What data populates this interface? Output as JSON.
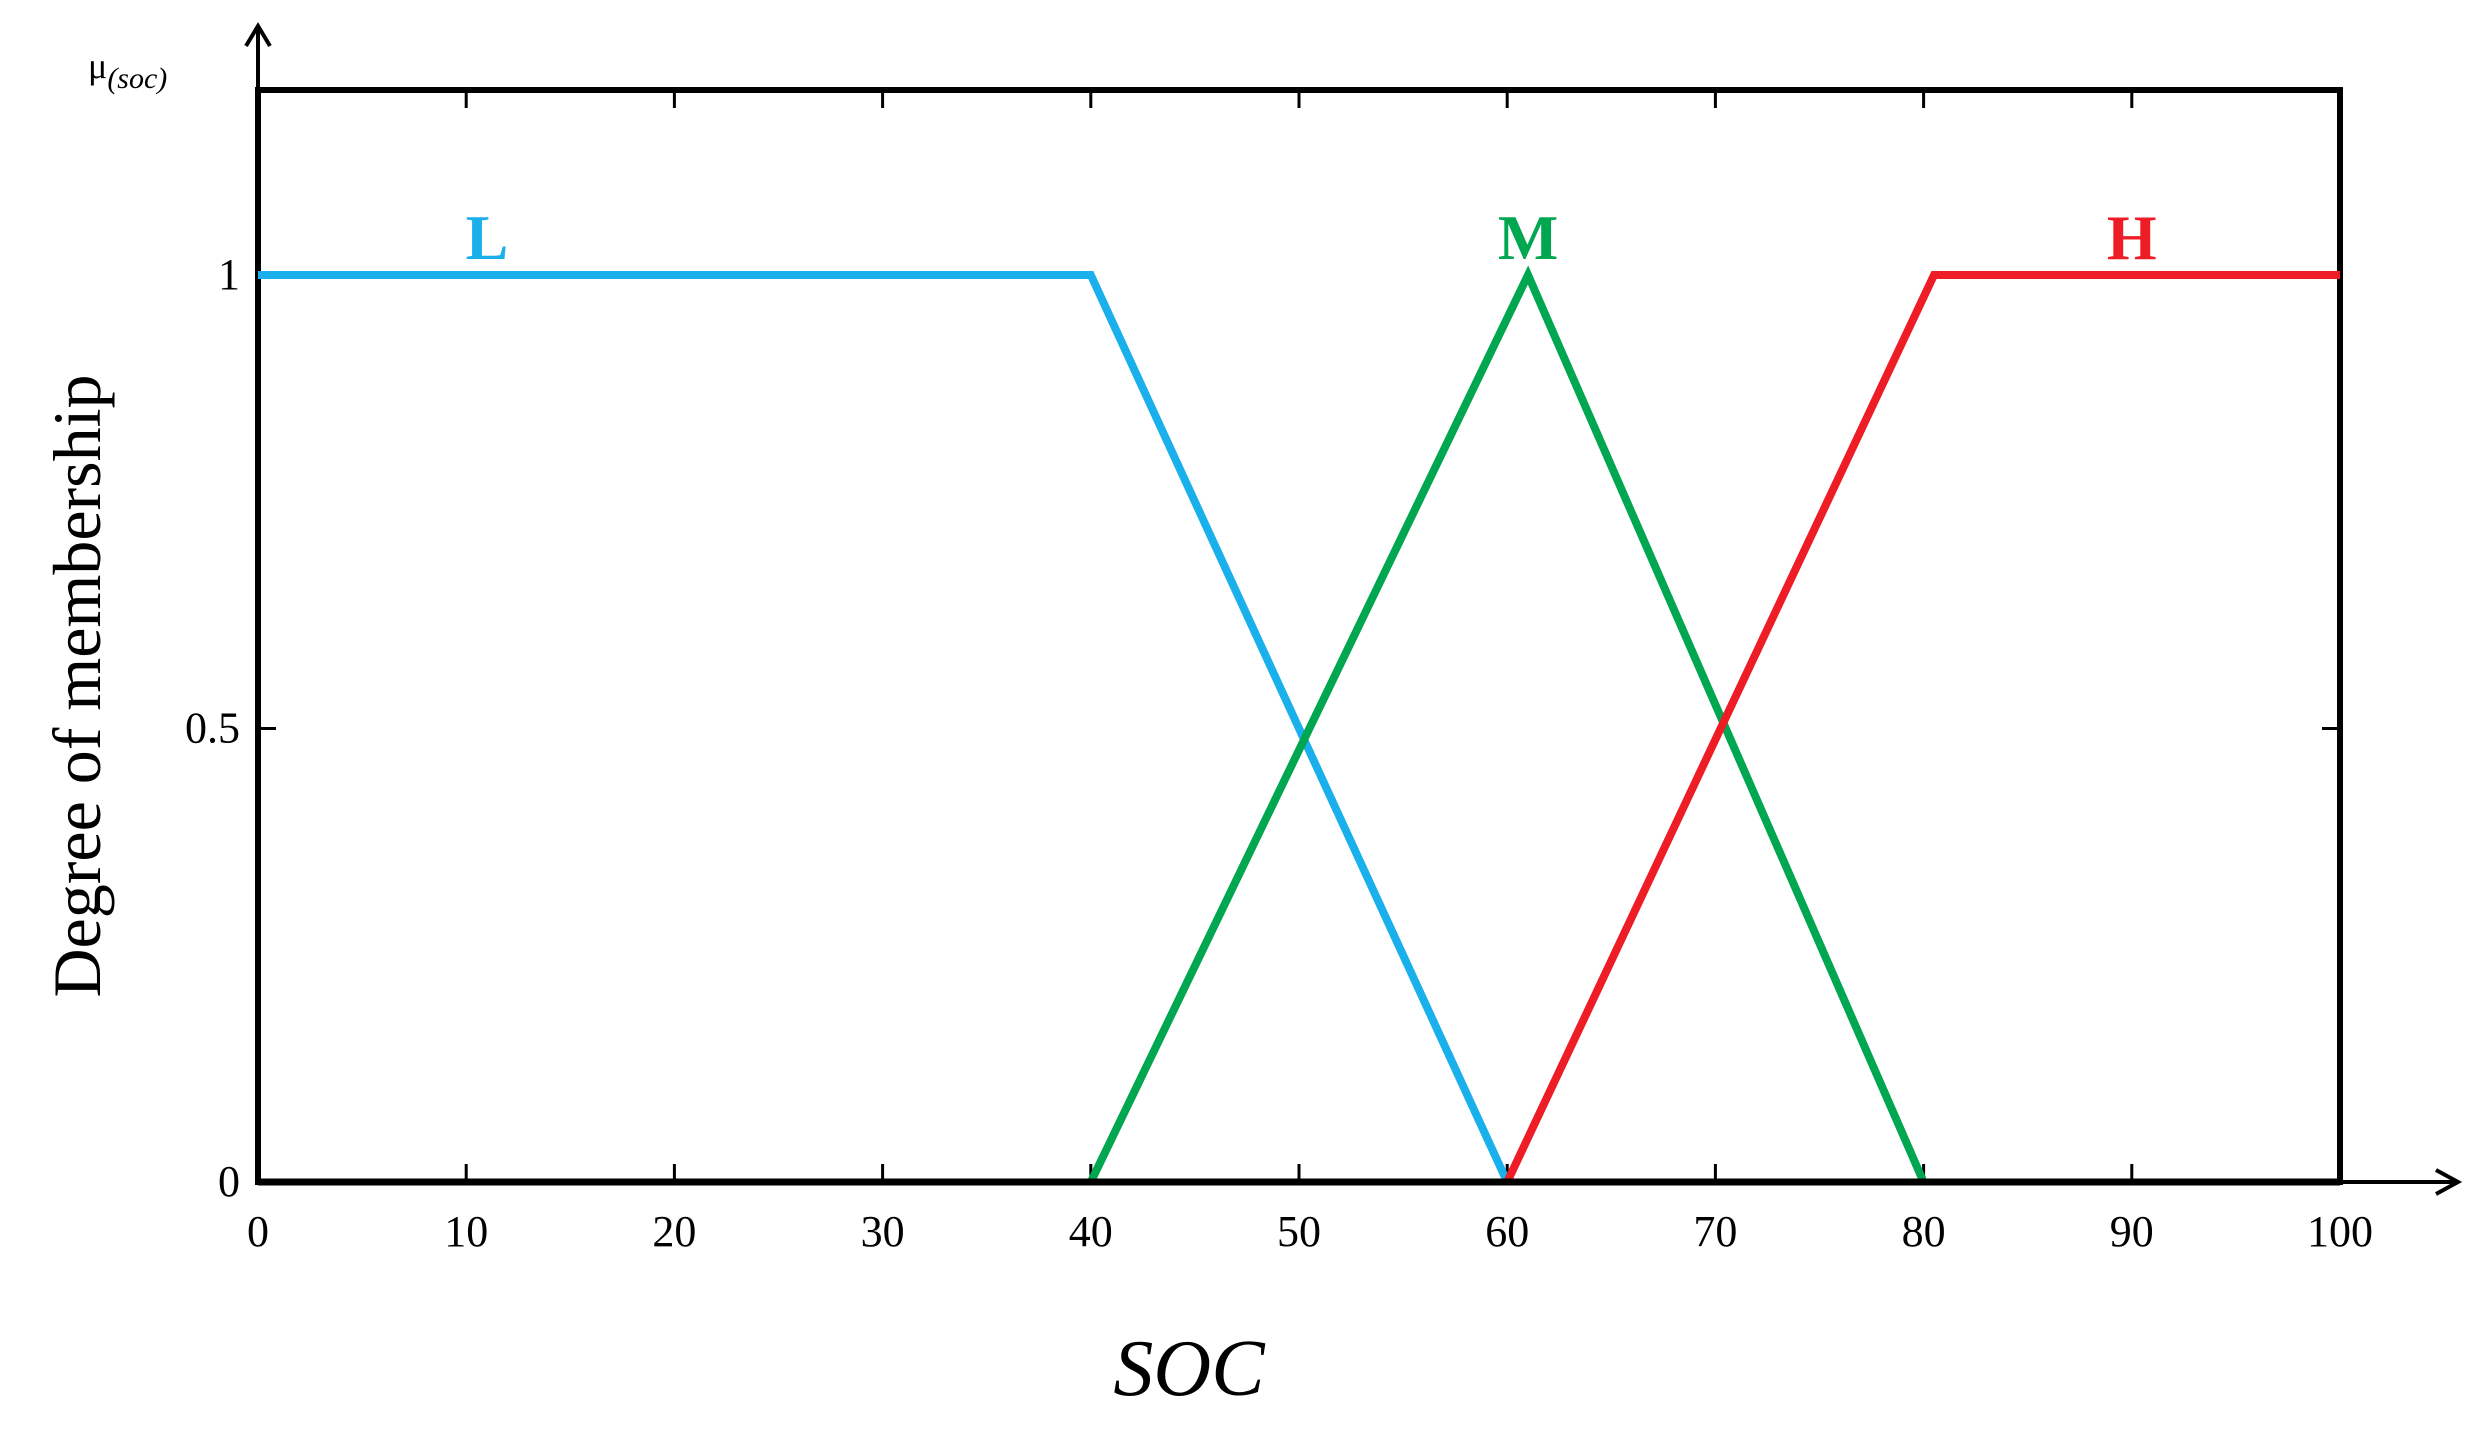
{
  "chart_data": {
    "type": "line",
    "title": "",
    "xlabel": "SOC",
    "ylabel": "Degree of membership",
    "y_axis_corner_label": "μ",
    "y_axis_corner_label_sub": "(soc)",
    "xlim": [
      0,
      100
    ],
    "ylim": [
      0,
      1
    ],
    "x_ticks": [
      0,
      10,
      20,
      30,
      40,
      50,
      60,
      70,
      80,
      90,
      100
    ],
    "y_ticks": [
      0,
      0.5,
      1
    ],
    "x_tick_labels": [
      "0",
      "10",
      "20",
      "30",
      "40",
      "50",
      "60",
      "70",
      "80",
      "90",
      "100"
    ],
    "y_tick_labels": [
      "0",
      "0.5",
      "1"
    ],
    "grid": false,
    "legend": "none (series labeled directly above curves)",
    "series": [
      {
        "name": "L",
        "color": "#1ab0ec",
        "x": [
          0,
          40,
          60
        ],
        "y": [
          1,
          1,
          0
        ],
        "label_x": 11
      },
      {
        "name": "M",
        "color": "#00a650",
        "x": [
          40,
          61,
          80
        ],
        "y": [
          0,
          1,
          0
        ],
        "label_x": 61
      },
      {
        "name": "H",
        "color": "#ee1c25",
        "x": [
          60,
          80.5,
          100
        ],
        "y": [
          0,
          1,
          1
        ],
        "label_x": 90
      }
    ]
  }
}
